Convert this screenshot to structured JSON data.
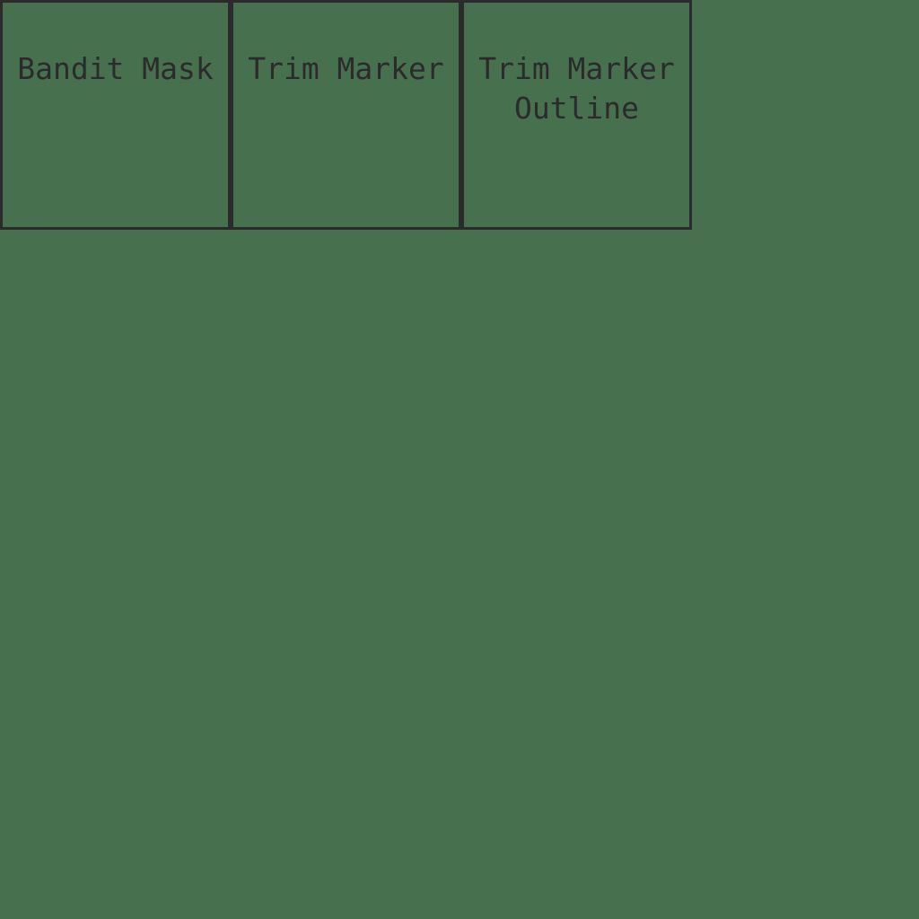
{
  "page": {
    "background_color": "#47704e",
    "border_color": "#2b2b2b",
    "text_color": "#2b2b2b"
  },
  "cells": [
    {
      "label": "Bandit Mask"
    },
    {
      "label": "Trim Marker"
    },
    {
      "label": "Trim Marker Outline"
    }
  ]
}
